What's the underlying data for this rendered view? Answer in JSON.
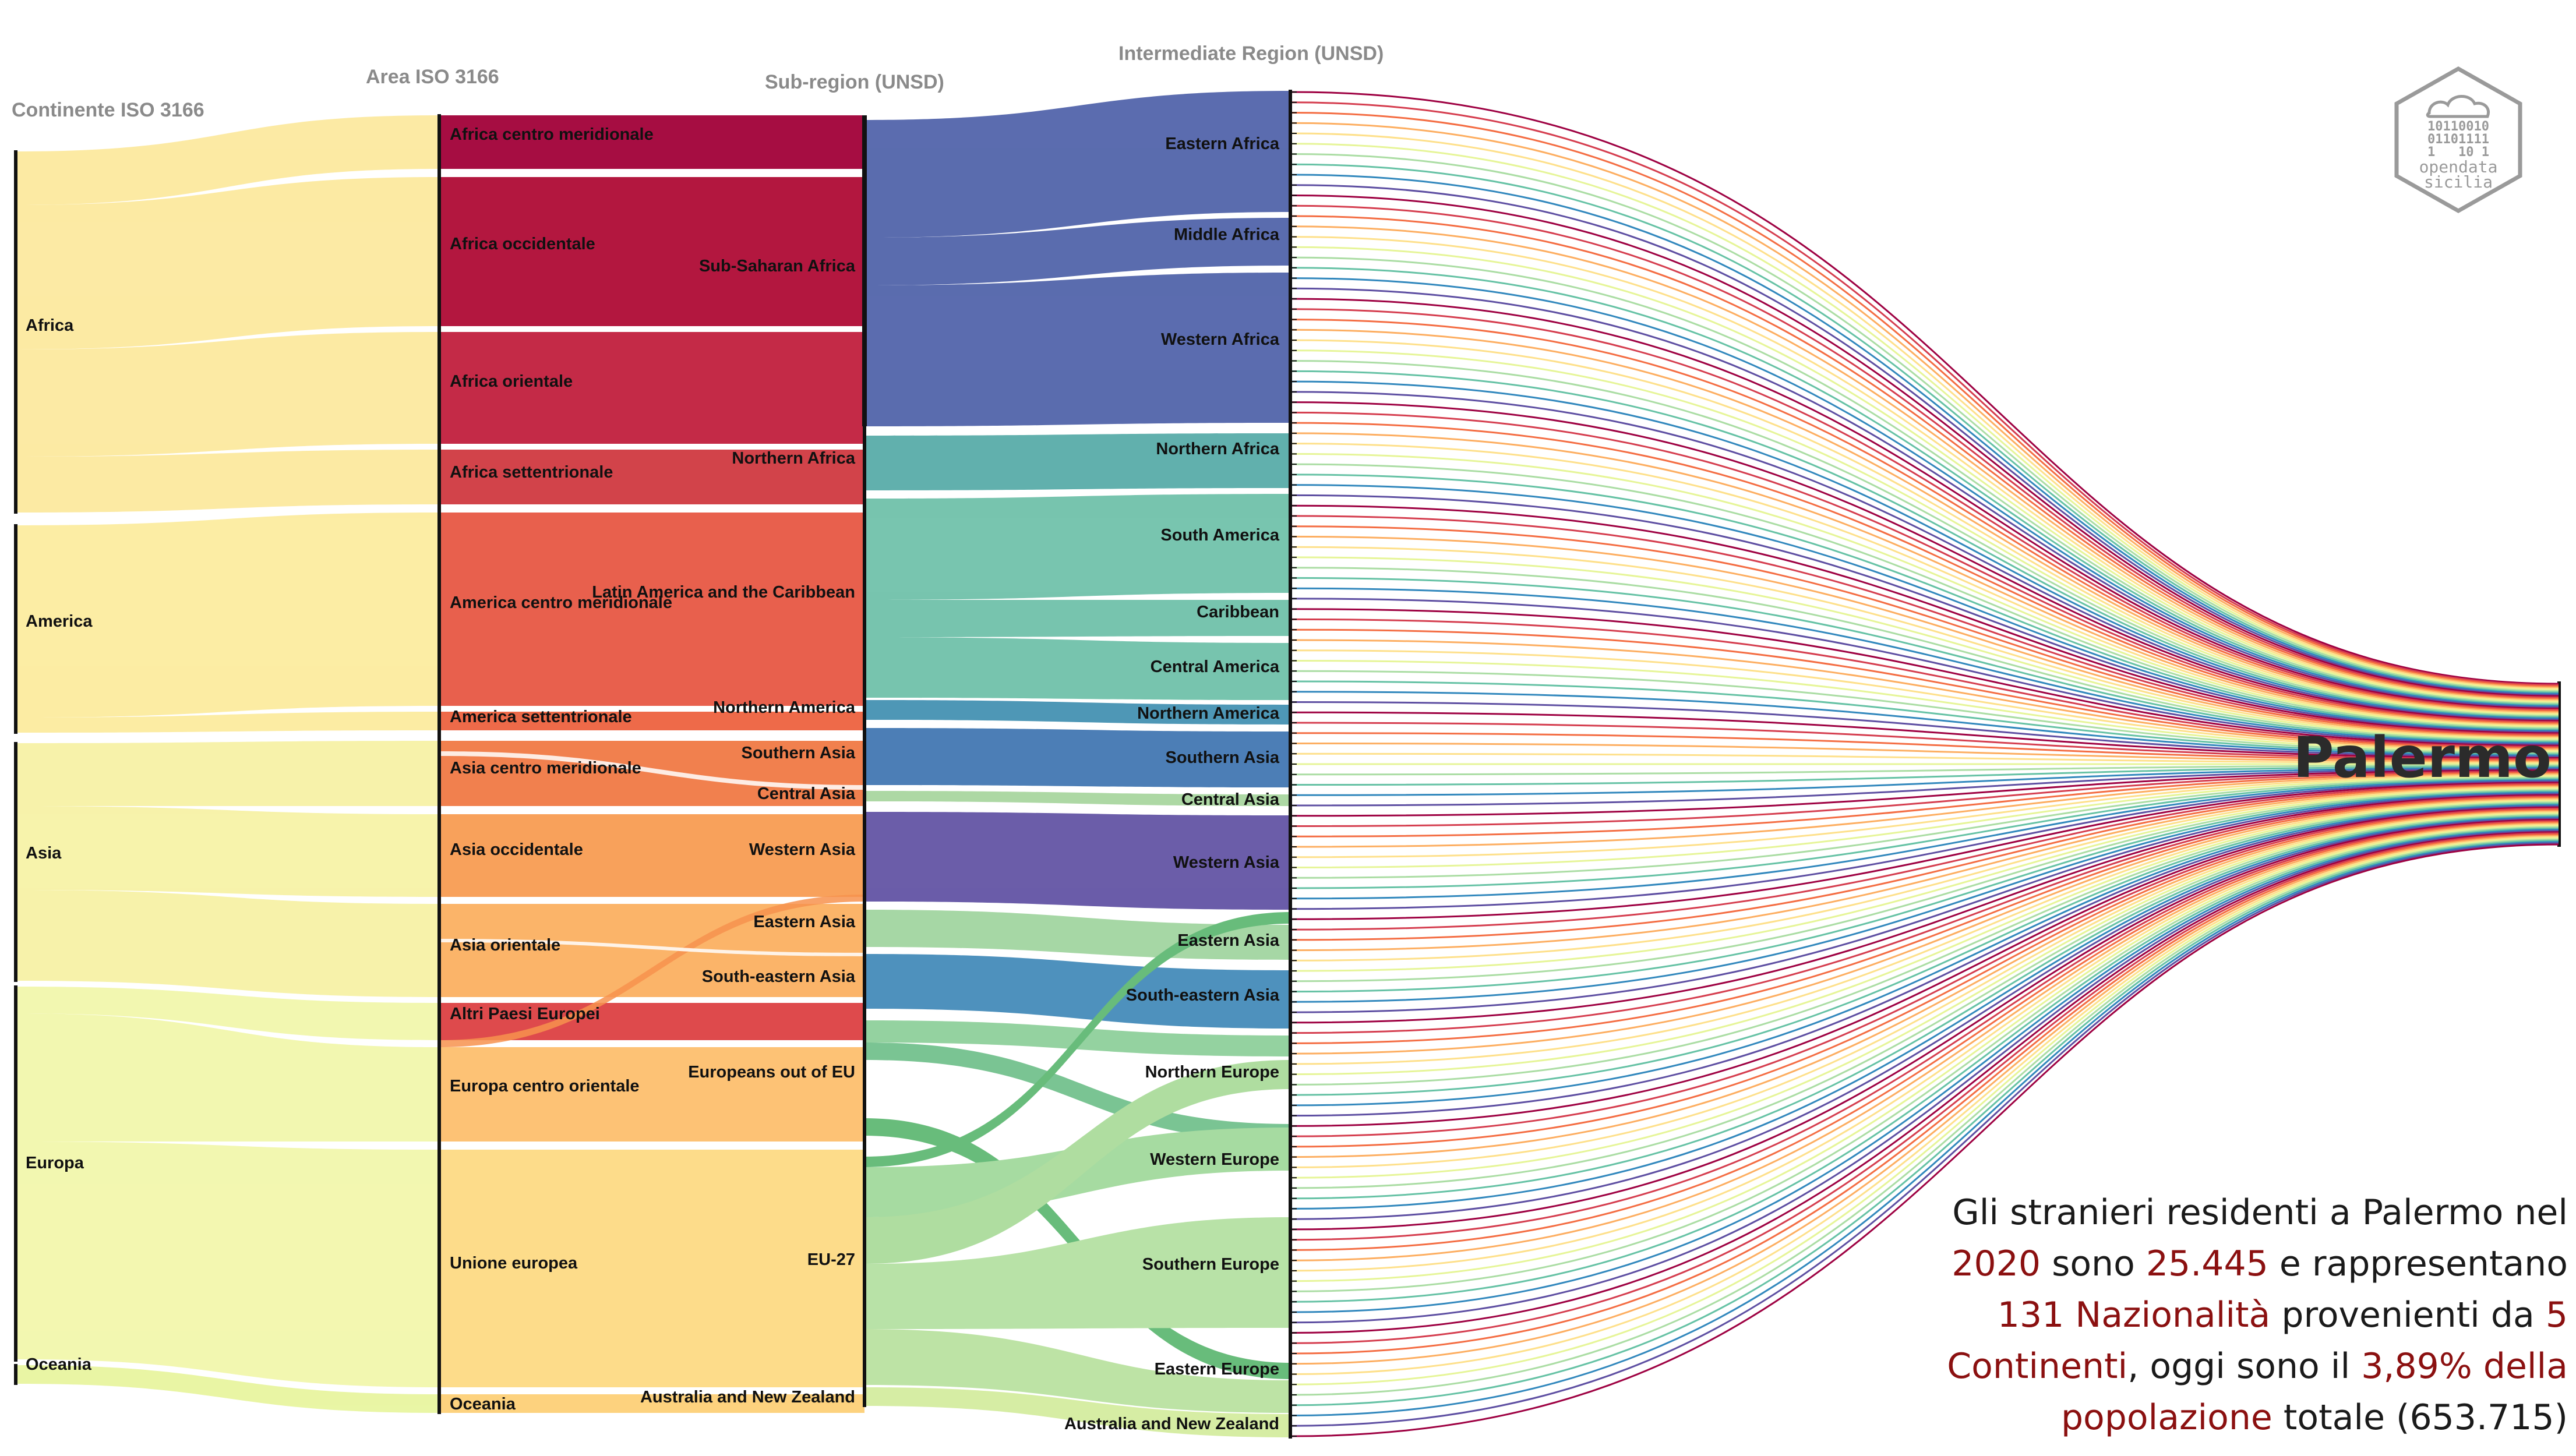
{
  "headers": {
    "continent": "Continente ISO 3166",
    "area": "Area ISO 3166",
    "subregion": "Sub-region (UNSD)",
    "intermediate": "Intermediate Region (UNSD)"
  },
  "city": "Palermo",
  "continents": [
    "Africa",
    "America",
    "Asia",
    "Europa",
    "Oceania"
  ],
  "areas": [
    "Africa centro meridionale",
    "Africa occidentale",
    "Africa orientale",
    "Africa settentrionale",
    "America centro meridionale",
    "America settentrionale",
    "Asia centro meridionale",
    "Asia occidentale",
    "Asia orientale",
    "Altri Paesi Europei",
    "Europa centro orientale",
    "Unione europea",
    "Oceania"
  ],
  "subregions": [
    "Sub-Saharan Africa",
    "Northern Africa",
    "Latin America and the Caribbean",
    "Northern America",
    "Southern Asia",
    "Central Asia",
    "Western Asia",
    "Eastern Asia",
    "South-eastern Asia",
    "Europeans out of EU",
    "EU-27",
    "Australia and New Zealand"
  ],
  "intermediates": [
    "Eastern Africa",
    "Middle Africa",
    "Western Africa",
    "Northern Africa",
    "South America",
    "Caribbean",
    "Central America",
    "Northern America",
    "Southern Asia",
    "Central Asia",
    "Western Asia",
    "Eastern Asia",
    "South-eastern Asia",
    "Northern Europe",
    "Western Europe",
    "Southern Europe",
    "Eastern Europe",
    "Australia and New Zealand"
  ],
  "caption": {
    "p1": "Gli stranieri residenti a Palermo nel",
    "year": "2020",
    "p2": "sono",
    "total": "25.445",
    "p3": "e rappresentano",
    "nations": "131 Nazionalità",
    "p4": "provenienti da",
    "five": "5",
    "continents_word": "Continenti",
    "p5": ", oggi sono il",
    "percent": "3,89% della",
    "popword": "popolazione",
    "p6": "totale (653.715)"
  },
  "logo": {
    "bits1": "10110010",
    "bits2": "01101111",
    "bits3": "1   10 1",
    "line1": "opendata",
    "line2": "sicilia"
  },
  "colors": {
    "sub_saharan": "#4d60a8",
    "northern_africa": "#54aaa7",
    "latam": "#6cc0a8",
    "northern_america": "#3f8fb0",
    "southern_asia": "#3d74b0",
    "central_asia": "#a7d59d",
    "western_asia": "#5e4fa2",
    "eastern_asia": "#9fd49e",
    "south_eastern_asia": "#3f88b8",
    "europe_flow": "#a9db98",
    "europe_dark_flow": "#5cb770",
    "caption_highlight": "#8b1010"
  },
  "nationality_count": 131
}
